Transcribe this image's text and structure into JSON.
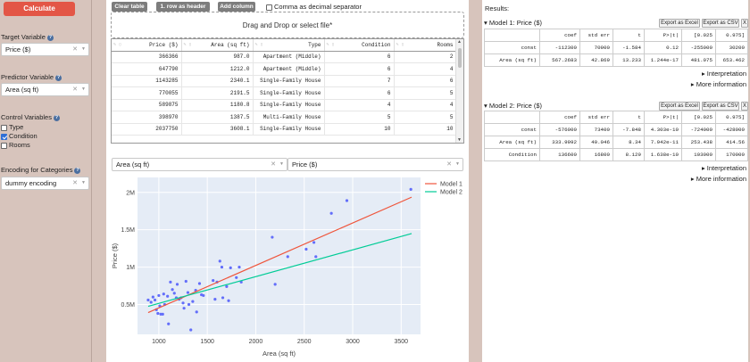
{
  "sidebar": {
    "calculate_label": "Calculate",
    "target_label": "Target Variable",
    "target_value": "Price ($)",
    "predictor_label": "Predictor Variable",
    "predictor_value": "Area (sq ft)",
    "control_label": "Control Variables",
    "controls": [
      {
        "label": "Type",
        "checked": false
      },
      {
        "label": "Condition",
        "checked": true
      },
      {
        "label": "Rooms",
        "checked": false
      }
    ],
    "encoding_label": "Encoding for Categories",
    "encoding_value": "dummy encoding"
  },
  "toolbar": {
    "clear_label": "Clear table",
    "header_label": "1. row as header",
    "add_column_label": "Add column",
    "comma_label": "Comma as decimal separator"
  },
  "dropzone": {
    "label": "Drag and Drop or select file*"
  },
  "table": {
    "columns": [
      "Price ($)",
      "Area (sq ft)",
      "Type",
      "Condition",
      "Rooms"
    ],
    "rows": [
      [
        "366366",
        "987.0",
        "Apartment (Middle)",
        "6",
        "2"
      ],
      [
        "647790",
        "1212.0",
        "Apartment (Middle)",
        "6",
        "4"
      ],
      [
        "1143285",
        "2340.1",
        "Single-Family House",
        "7",
        "6"
      ],
      [
        "770055",
        "2191.5",
        "Single-Family House",
        "6",
        "5"
      ],
      [
        "589875",
        "1180.8",
        "Single-Family House",
        "4",
        "4"
      ],
      [
        "398970",
        "1387.5",
        "Multi-Family House",
        "5",
        "5"
      ],
      [
        "2037750",
        "3608.1",
        "Single-Family House",
        "10",
        "10"
      ]
    ]
  },
  "plot_controls": {
    "x_value": "Area (sq ft)",
    "y_value": "Price ($)"
  },
  "chart_data": {
    "type": "scatter",
    "xlabel": "Area (sq ft)",
    "ylabel": "Price ($)",
    "xlim": [
      780,
      3700
    ],
    "ylim": [
      100000,
      2200000
    ],
    "x_ticks": [
      {
        "v": 1000,
        "label": "1000"
      },
      {
        "v": 1500,
        "label": "1500"
      },
      {
        "v": 2000,
        "label": "2000"
      },
      {
        "v": 2500,
        "label": "2500"
      },
      {
        "v": 3000,
        "label": "3000"
      },
      {
        "v": 3500,
        "label": "3500"
      }
    ],
    "y_ticks": [
      {
        "v": 500000,
        "label": "0.5M"
      },
      {
        "v": 1000000,
        "label": "1M"
      },
      {
        "v": 1500000,
        "label": "1.5M"
      },
      {
        "v": 2000000,
        "label": "2M"
      }
    ],
    "grid": true,
    "legend_position": "top-right",
    "point_color": "#636efa",
    "points": [
      [
        890,
        560000
      ],
      [
        920,
        530000
      ],
      [
        940,
        600000
      ],
      [
        960,
        560000
      ],
      [
        975,
        430000
      ],
      [
        990,
        380000
      ],
      [
        1000,
        620000
      ],
      [
        1010,
        480000
      ],
      [
        1020,
        370000
      ],
      [
        1040,
        370000
      ],
      [
        1050,
        640000
      ],
      [
        1060,
        500000
      ],
      [
        1090,
        610000
      ],
      [
        1100,
        240000
      ],
      [
        1120,
        800000
      ],
      [
        1140,
        700000
      ],
      [
        1160,
        650000
      ],
      [
        1180,
        590000
      ],
      [
        1190,
        770000
      ],
      [
        1210,
        570000
      ],
      [
        1230,
        590000
      ],
      [
        1250,
        520000
      ],
      [
        1260,
        450000
      ],
      [
        1280,
        810000
      ],
      [
        1300,
        660000
      ],
      [
        1310,
        500000
      ],
      [
        1330,
        160000
      ],
      [
        1350,
        540000
      ],
      [
        1380,
        690000
      ],
      [
        1390,
        400000
      ],
      [
        1420,
        780000
      ],
      [
        1440,
        630000
      ],
      [
        1460,
        620000
      ],
      [
        1560,
        820000
      ],
      [
        1580,
        570000
      ],
      [
        1600,
        800000
      ],
      [
        1630,
        1080000
      ],
      [
        1650,
        1000000
      ],
      [
        1660,
        590000
      ],
      [
        1700,
        740000
      ],
      [
        1720,
        550000
      ],
      [
        1740,
        990000
      ],
      [
        1800,
        860000
      ],
      [
        1830,
        1000000
      ],
      [
        1850,
        800000
      ],
      [
        2170,
        1400000
      ],
      [
        2200,
        770000
      ],
      [
        2330,
        1140000
      ],
      [
        2520,
        1240000
      ],
      [
        2600,
        1330000
      ],
      [
        2620,
        1140000
      ],
      [
        2780,
        1720000
      ],
      [
        2940,
        1890000
      ],
      [
        3600,
        2040000
      ]
    ],
    "series": [
      {
        "name": "Model 1",
        "color": "#ef553b",
        "x": [
          890,
          3608
        ],
        "y": [
          392000,
          1936000
        ]
      },
      {
        "name": "Model 2",
        "color": "#00cc96",
        "x": [
          890,
          3608
        ],
        "y": [
          475000,
          1449000
        ]
      }
    ]
  },
  "results": {
    "title": "Results:",
    "export_excel_label": "Export as Excel",
    "export_csv_label": "Export as CSV",
    "close_label": "X",
    "interpretation_label": "Interpretation",
    "more_info_label": "More information",
    "models": [
      {
        "title": "Model 1: Price ($)",
        "header": [
          "",
          "coef",
          "std err",
          "t",
          "P>|t|",
          "[0.025",
          "0.975]"
        ],
        "rows": [
          [
            "const",
            "-112300",
            "70900",
            "-1.584",
            "0.12",
            "-255000",
            "30200"
          ],
          [
            "Area (sq ft)",
            "567.2683",
            "42.869",
            "13.233",
            "1.244e-17",
            "481.075",
            "653.462"
          ]
        ]
      },
      {
        "title": "Model 2: Price ($)",
        "header": [
          "",
          "coef",
          "std err",
          "t",
          "P>|t|",
          "[0.025",
          "0.975]"
        ],
        "rows": [
          [
            "const",
            "-576000",
            "73400",
            "-7.848",
            "4.303e-10",
            "-724000",
            "-428000"
          ],
          [
            "Area (sq ft)",
            "333.9992",
            "40.046",
            "8.34",
            "7.942e-11",
            "253.438",
            "414.56"
          ],
          [
            "Condition",
            "136600",
            "16800",
            "8.129",
            "1.638e-10",
            "103000",
            "170000"
          ]
        ]
      }
    ]
  }
}
